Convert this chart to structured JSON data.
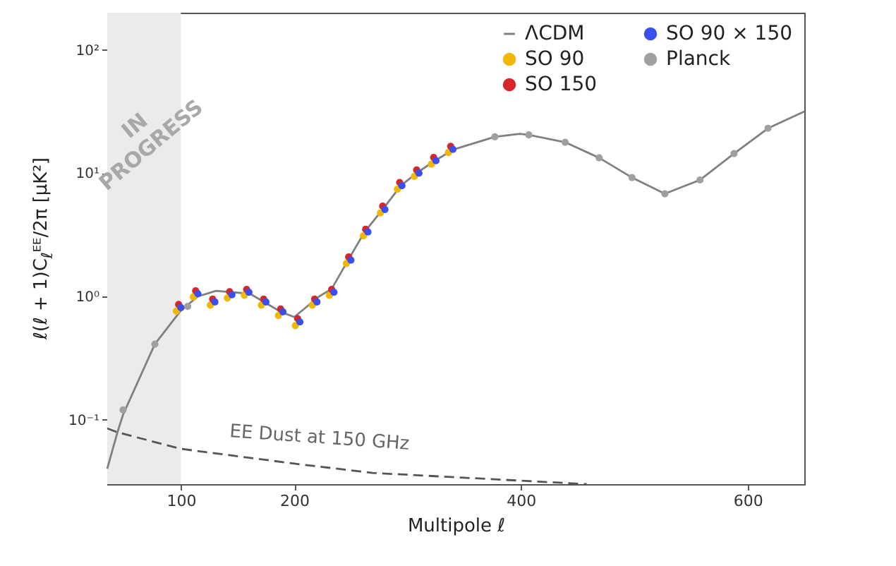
{
  "chart_data": {
    "type": "scatter",
    "xlabel": "Multipole ℓ",
    "ylabel": "ℓ(ℓ + 1)C$_{ℓ}$ᴱᴱ/2π [μK²]",
    "log": "y",
    "xlim": [
      35,
      650
    ],
    "xticks": [
      100,
      200,
      400,
      600
    ],
    "ylim": [
      0.03,
      200
    ],
    "yticks": [
      {
        "value": 0.1,
        "label": "10⁻¹"
      },
      {
        "value": 1,
        "label": "10⁰"
      },
      {
        "value": 10,
        "label": "10¹"
      },
      {
        "value": 100,
        "label": "10²"
      }
    ],
    "marker": "circle",
    "legend": "top right",
    "grid": false,
    "bands": [
      {
        "axis": "x",
        "from": 35,
        "to": 100,
        "label": "IN PROGRESS",
        "color": "#ebebeb"
      }
    ],
    "annotations": [
      "EE Dust at 150 GHz"
    ],
    "series": [
      {
        "name": "ΛCDM",
        "type": "line",
        "color": "#808080",
        "line_style": "solid",
        "marker": "none",
        "x": [
          35,
          44,
          49,
          77,
          100,
          115,
          131,
          161,
          188,
          200,
          222,
          233,
          248,
          262,
          278,
          294,
          308,
          324,
          341,
          377,
          399,
          407,
          439,
          469,
          498,
          527,
          558,
          588,
          618,
          650
        ],
        "values": [
          0.04,
          0.079,
          0.11,
          0.41,
          0.77,
          1.0,
          1.11,
          1.05,
          0.75,
          0.68,
          1.0,
          1.15,
          2.0,
          3.33,
          5.07,
          7.9,
          10,
          12.6,
          15.6,
          19.7,
          20.8,
          20.4,
          17.8,
          13.3,
          9.2,
          6.8,
          8.8,
          14.4,
          23.1,
          31.6
        ]
      },
      {
        "name": "SO 90",
        "color": "#f2b705",
        "x": [
          96,
          111,
          126,
          141,
          156,
          171,
          186,
          201,
          216,
          231,
          246,
          261,
          276,
          291,
          306,
          321,
          336
        ],
        "values": [
          0.76,
          0.99,
          0.85,
          0.97,
          1.02,
          0.85,
          0.7,
          0.58,
          0.85,
          1.02,
          1.85,
          3.1,
          4.75,
          7.4,
          9.4,
          11.8,
          14.7
        ]
      },
      {
        "name": "SO 150",
        "color": "#d62728",
        "x": [
          98,
          113,
          128,
          143,
          158,
          173,
          188,
          203,
          218,
          233,
          248,
          263,
          278,
          293,
          308,
          323,
          338
        ],
        "values": [
          0.86,
          1.11,
          0.95,
          1.09,
          1.14,
          0.95,
          0.79,
          0.66,
          0.95,
          1.14,
          2.09,
          3.5,
          5.4,
          8.4,
          10.6,
          13.4,
          16.5
        ]
      },
      {
        "name": "SO 90 × 150",
        "color": "#3a4ff0",
        "x": [
          100,
          115,
          130,
          145,
          160,
          175,
          190,
          205,
          220,
          235,
          250,
          265,
          280,
          295,
          310,
          325,
          340
        ],
        "values": [
          0.81,
          1.05,
          0.9,
          1.03,
          1.08,
          0.9,
          0.75,
          0.62,
          0.9,
          1.08,
          1.97,
          3.33,
          5.07,
          7.9,
          10,
          12.6,
          15.6
        ]
      },
      {
        "name": "Planck",
        "color": "#a0a0a0",
        "x": [
          49,
          77,
          106,
          377,
          407,
          439,
          469,
          498,
          527,
          558,
          588,
          618
        ],
        "values": [
          0.12,
          0.41,
          0.83,
          19.7,
          20.4,
          17.8,
          13.3,
          9.2,
          6.8,
          8.8,
          14.4,
          23.1
        ]
      },
      {
        "type": "line",
        "color": "#555555",
        "line_style": "dashed",
        "marker": "none",
        "x": [
          35,
          44,
          100,
          200,
          269,
          400,
          458
        ],
        "values": [
          0.085,
          0.079,
          0.058,
          0.044,
          0.037,
          0.032,
          0.03
        ]
      }
    ]
  }
}
